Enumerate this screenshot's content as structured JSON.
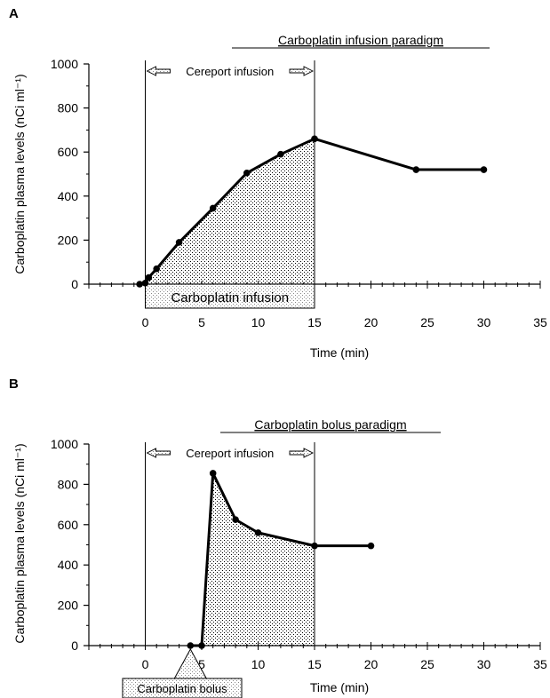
{
  "chart_data": [
    {
      "panel_label": "A",
      "type": "line",
      "title": "Carboplatin infusion paradigm",
      "xlabel": "Time (min)",
      "ylabel": "Carboplatin plasma levels (nCi ml⁻¹)",
      "xlim": [
        -5,
        35
      ],
      "ylim": [
        0,
        1000
      ],
      "x_ticks": [
        0,
        5,
        10,
        15,
        20,
        25,
        30,
        35
      ],
      "y_ticks": [
        0,
        200,
        400,
        600,
        800,
        1000
      ],
      "series": [
        {
          "x": [
            -0.5,
            0,
            0.3,
            1,
            3,
            6,
            9,
            12,
            15,
            24,
            30
          ],
          "y": [
            0,
            5,
            30,
            70,
            190,
            345,
            505,
            590,
            660,
            520,
            520
          ]
        }
      ],
      "shaded_region": {
        "x_start": 0,
        "x_end": 15
      },
      "cereport_interval": {
        "label": "Cereport infusion",
        "x_start": 0,
        "x_end": 15
      },
      "drug_box": {
        "label": "Carboplatin infusion",
        "x_start": 0,
        "x_end": 15
      }
    },
    {
      "panel_label": "B",
      "type": "line",
      "title": "Carboplatin bolus paradigm",
      "xlabel": "Time (min)",
      "ylabel": "Carboplatin plasma levels (nCi ml⁻¹)",
      "xlim": [
        -5,
        35
      ],
      "ylim": [
        0,
        1000
      ],
      "x_ticks": [
        0,
        5,
        10,
        15,
        20,
        25,
        30,
        35
      ],
      "y_ticks": [
        0,
        200,
        400,
        600,
        800,
        1000
      ],
      "series": [
        {
          "x": [
            4,
            5,
            6,
            8,
            10,
            15,
            20
          ],
          "y": [
            0,
            0,
            855,
            625,
            560,
            495,
            495
          ]
        }
      ],
      "shaded_region": {
        "x_start": 4.5,
        "x_end": 15
      },
      "cereport_interval": {
        "label": "Cereport infusion",
        "x_start": 0,
        "x_end": 15
      },
      "drug_box": {
        "label": "Carboplatin bolus",
        "x_at": 4
      }
    }
  ]
}
